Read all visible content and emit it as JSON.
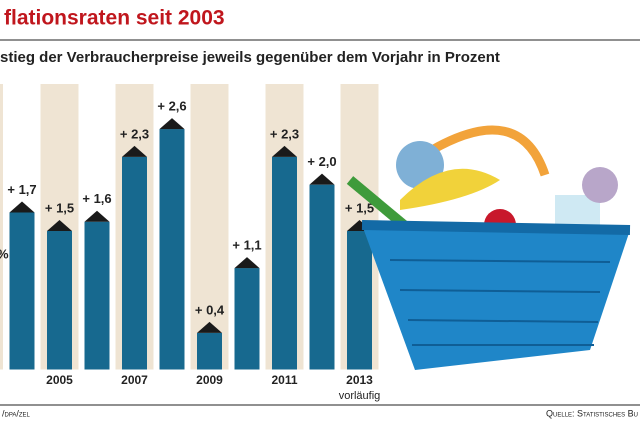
{
  "chart_data": {
    "type": "bar",
    "title": "flationsraten seit 2003",
    "subtitle": "stieg der Verbraucherpreise jeweils gegenüber dem Vorjahr in Prozent",
    "categories": [
      null,
      "2005",
      null,
      "2007",
      null,
      "2009",
      null,
      "2011",
      null,
      "2013"
    ],
    "values": [
      1.7,
      1.5,
      1.6,
      2.3,
      2.6,
      0.4,
      1.1,
      2.3,
      2.0,
      1.5
    ],
    "value_labels": [
      "+ 1,7",
      "+ 1,5",
      "+ 1,6",
      "+ 2,3",
      "+ 2,6",
      "+ 0,4",
      "+ 1,1",
      "+ 2,3",
      "+ 2,0",
      "+ 1,5"
    ],
    "color": "#17698f",
    "ylim": [
      0,
      3
    ],
    "annotations": [
      "%",
      "vorläufig"
    ],
    "source_left": "/dpa/zel",
    "source_right": "Quelle: Statistisches Bu"
  }
}
